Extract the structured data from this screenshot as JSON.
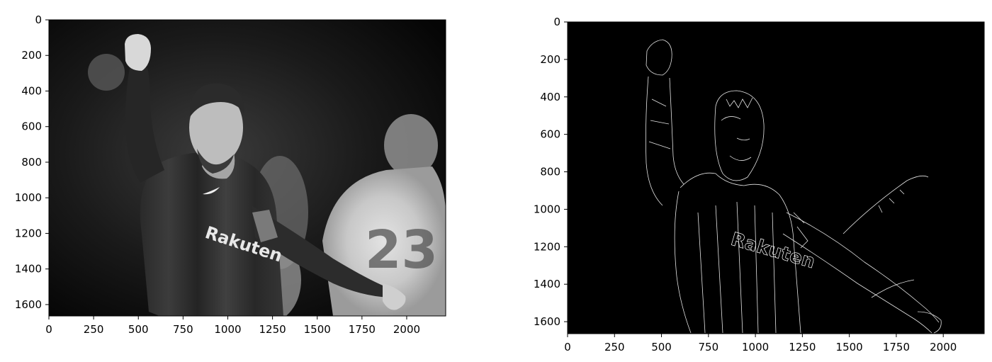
{
  "colors": {
    "page_background": "#ffffff",
    "axes_frame": "#000000",
    "grayscale_image_tone": "#808080",
    "edge_map_background": "#000000",
    "edge_lines": "#ffffff"
  },
  "panels": [
    {
      "name": "grayscale-image",
      "image_content": "grayscale photo of a soccer player raising his fist",
      "jersey_text": "Rakuten",
      "background_number": "23",
      "x_ticks": [
        "0",
        "250",
        "500",
        "750",
        "1000",
        "1250",
        "1500",
        "1750",
        "2000"
      ],
      "y_ticks": [
        "0",
        "200",
        "400",
        "600",
        "800",
        "1000",
        "1200",
        "1400",
        "1600"
      ],
      "x_range": [
        0,
        2218
      ],
      "y_range": [
        1664,
        0
      ]
    },
    {
      "name": "canny-edge-map",
      "image_content": "edge detection output of the same image",
      "jersey_text": "Rakuten",
      "x_ticks": [
        "0",
        "250",
        "500",
        "750",
        "1000",
        "1250",
        "1500",
        "1750",
        "2000"
      ],
      "y_ticks": [
        "0",
        "200",
        "400",
        "600",
        "800",
        "1000",
        "1200",
        "1400",
        "1600"
      ],
      "x_range": [
        0,
        2218
      ],
      "y_range": [
        1664,
        0
      ]
    }
  ]
}
